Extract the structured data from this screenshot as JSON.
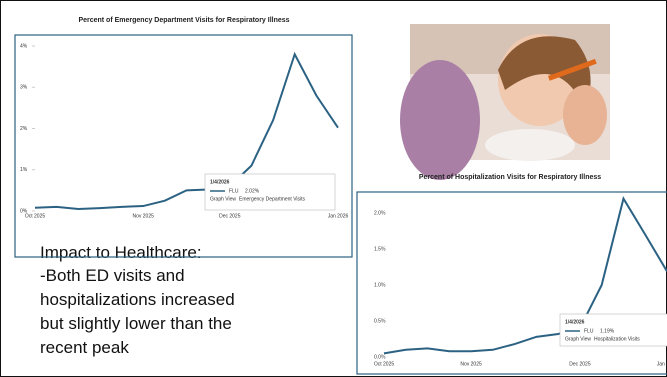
{
  "chart_data": [
    {
      "type": "line",
      "title": "Percent of Emergency Department Visits for Respiratory Illness",
      "categories": [
        "Oct 2025",
        null,
        null,
        null,
        null,
        "Nov 2025",
        null,
        null,
        null,
        "Dec 2025",
        null,
        null,
        null,
        null,
        "Jan 2026"
      ],
      "series": [
        {
          "name": "FLU",
          "color": "#2b6283",
          "values": [
            0.08,
            0.1,
            0.05,
            0.07,
            0.1,
            0.12,
            0.25,
            0.5,
            0.52,
            0.6,
            1.1,
            2.2,
            3.8,
            2.8,
            2.02
          ]
        }
      ],
      "ylim": [
        0,
        4
      ],
      "yticks": [
        {
          "value": 0,
          "label": "0%"
        },
        {
          "value": 1,
          "label": "1%"
        },
        {
          "value": 2,
          "label": "2%"
        },
        {
          "value": 3,
          "label": "3%"
        },
        {
          "value": 4,
          "label": "4%"
        }
      ],
      "tooltip": {
        "date": "1/4/2026",
        "value": "2.02%",
        "legend": "Graph View",
        "view": "Emergency Department Visits"
      }
    },
    {
      "type": "line",
      "title": "Percent of Hospitalization Visits for Respiratory Illness",
      "categories": [
        "Oct 2025",
        null,
        null,
        null,
        "Nov 2025",
        null,
        null,
        null,
        null,
        "Dec 2025",
        null,
        null,
        null,
        "Jan 2026"
      ],
      "series": [
        {
          "name": "FLU",
          "color": "#2b6283",
          "values": [
            0.05,
            0.1,
            0.12,
            0.08,
            0.08,
            0.1,
            0.18,
            0.28,
            0.32,
            0.4,
            1.0,
            2.2,
            1.7,
            1.19
          ]
        }
      ],
      "ylim": [
        0,
        2
      ],
      "yticks": [
        {
          "value": 0,
          "label": "0.0%"
        },
        {
          "value": 0.5,
          "label": "0.5%"
        },
        {
          "value": 1,
          "label": "1.0%"
        },
        {
          "value": 1.5,
          "label": "1.5%"
        },
        {
          "value": 2,
          "label": "2.0%"
        }
      ],
      "tooltip": {
        "date": "1/4/2026",
        "value": "1.19%",
        "legend": "Graph View",
        "view": "Hospitalization Visits"
      }
    }
  ],
  "body_text": [
    "Impact to Healthcare:",
    "-Both ED visits and",
    "hospitalizations increased",
    "but slightly lower than the",
    "recent peak"
  ]
}
